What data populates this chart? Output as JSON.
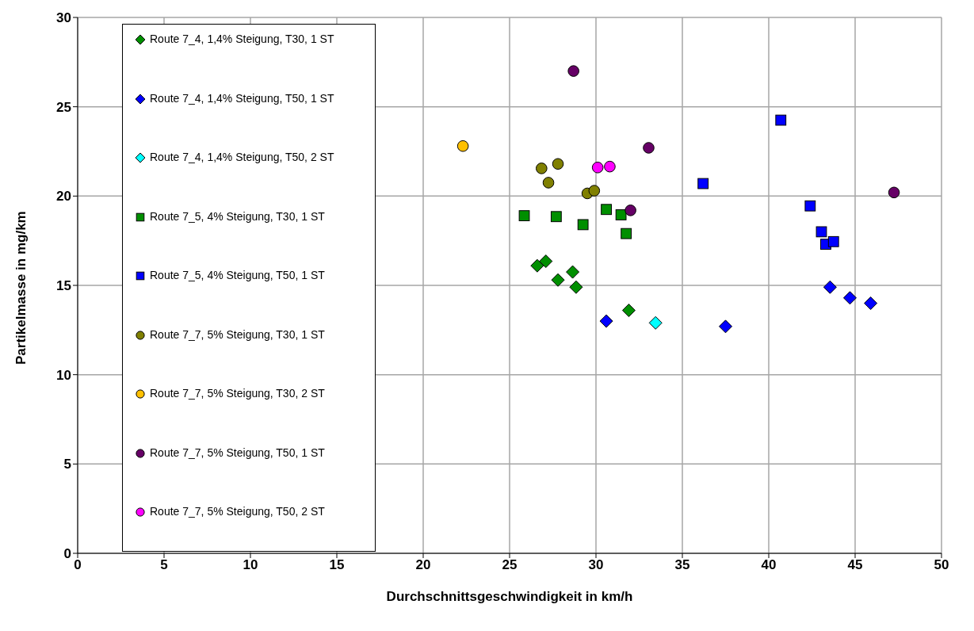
{
  "chart_data": {
    "type": "scatter",
    "xlabel": "Durchschnittsgeschwindigkeit in km/h",
    "ylabel": "Partikelmasse in mg/km",
    "xlim": [
      0,
      50
    ],
    "xticks": [
      0,
      5,
      10,
      15,
      20,
      25,
      30,
      35,
      40,
      45,
      50
    ],
    "ylim": [
      0,
      30
    ],
    "yticks": [
      0,
      5,
      10,
      15,
      20,
      25,
      30
    ],
    "grid": true,
    "legend": "top left",
    "series": [
      {
        "name": "Route 7_4, 1,4% Steigung, T30, 1 ST",
        "color": "#008f00",
        "marker": "diamond",
        "x": [
          26.6,
          27.1,
          27.8,
          28.65,
          28.85,
          31.9
        ],
        "values": [
          16.1,
          16.35,
          15.3,
          15.75,
          14.9,
          13.6
        ]
      },
      {
        "name": "Route 7_4, 1,4% Steigung, T50, 1 ST",
        "color": "#0000ff",
        "marker": "diamond",
        "x": [
          30.6,
          37.5,
          43.55,
          44.7,
          45.9
        ],
        "values": [
          13.0,
          12.7,
          14.9,
          14.3,
          14.0
        ]
      },
      {
        "name": "Route 7_4, 1,4% Steigung, T50, 2 ST",
        "color": "#00ffff",
        "marker": "diamond",
        "x": [
          33.45
        ],
        "values": [
          12.9
        ]
      },
      {
        "name": "Route 7_5, 4% Steigung, T30, 1 ST",
        "color": "#008f00",
        "marker": "square",
        "x": [
          25.85,
          27.7,
          29.25,
          30.6,
          31.45,
          31.75
        ],
        "values": [
          18.9,
          18.85,
          18.4,
          19.25,
          18.95,
          17.9
        ]
      },
      {
        "name": "Route 7_5, 4% Steigung, T50, 1 ST",
        "color": "#0000ff",
        "marker": "square",
        "x": [
          36.2,
          40.7,
          42.4,
          43.05,
          43.3,
          43.75
        ],
        "values": [
          20.7,
          24.25,
          19.45,
          18.0,
          17.3,
          17.45
        ]
      },
      {
        "name": "Route 7_7, 5% Steigung, T30, 1 ST",
        "color": "#808000",
        "marker": "circle",
        "x": [
          26.85,
          27.8,
          27.25,
          29.5,
          29.9
        ],
        "values": [
          21.55,
          21.8,
          20.75,
          20.15,
          20.3
        ]
      },
      {
        "name": "Route 7_7, 5% Steigung, T30, 2 ST",
        "color": "#ffc000",
        "marker": "circle",
        "x": [
          22.3
        ],
        "values": [
          22.8
        ]
      },
      {
        "name": "Route 7_7, 5% Steigung, T50, 1 ST",
        "color": "#660066",
        "marker": "circle",
        "x": [
          28.7,
          33.05,
          32.0,
          47.25
        ],
        "values": [
          27.0,
          22.7,
          19.2,
          20.2
        ]
      },
      {
        "name": "Route 7_7, 5% Steigung, T50, 2 ST",
        "color": "#ff00ff",
        "marker": "circle",
        "x": [
          30.1,
          30.8
        ],
        "values": [
          21.6,
          21.65
        ]
      }
    ]
  }
}
